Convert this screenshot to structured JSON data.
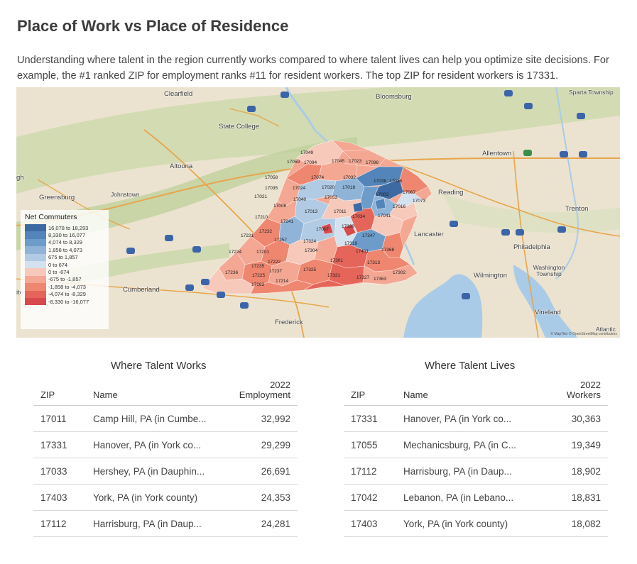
{
  "title": "Place of Work vs Place of Residence",
  "intro": "Understanding where talent in the region currently works compared to where talent lives can help you optimize site decisions. For example, the #1 ranked ZIP for employment ranks #11 for resident workers. The top ZIP for resident workers is 17331.",
  "map": {
    "cities": [
      "Clearfield",
      "Bloomsburg",
      "Sparta Township",
      "State College",
      "Altoona",
      "Allentown",
      "Reading",
      "Greensburg",
      "Johnstown",
      "Trenton",
      "Lancaster",
      "Philadelphia",
      "Washington Township",
      "Wilmington",
      "Cumberland",
      "Frederick",
      "Vineland",
      "Atlantic",
      "gh",
      "ito"
    ],
    "zip_labels": [
      "17049",
      "17059",
      "17094",
      "17045",
      "17023",
      "17098",
      "17058",
      "17074",
      "17032",
      "17038",
      "17026",
      "17035",
      "17024",
      "17020",
      "17018",
      "17021",
      "17040",
      "17053",
      "17003",
      "17067",
      "17006",
      "17013",
      "17011",
      "17016",
      "17073",
      "17210",
      "17241",
      "17034",
      "17041",
      "17232",
      "17007",
      "17339",
      "17221",
      "17257",
      "17324",
      "17347",
      "17319",
      "17224",
      "17201",
      "17304",
      "17401",
      "17368",
      "17235",
      "17222",
      "17301",
      "17313",
      "17236",
      "17237",
      "17325",
      "17225",
      "17331",
      "17327",
      "17302",
      "17263",
      "17214",
      "17363"
    ],
    "legend_title": "Net Commuters",
    "legend": [
      {
        "label": "16,078 to 18,293",
        "color": "#3e6aa3"
      },
      {
        "label": "8,330 to 16,077",
        "color": "#5385ba"
      },
      {
        "label": "4,074 to 8,329",
        "color": "#6e9cca"
      },
      {
        "label": "1,858 to 4,073",
        "color": "#8fb4d8"
      },
      {
        "label": "675 to 1,857",
        "color": "#b2cbe4"
      },
      {
        "label": "0 to 674",
        "color": "#d4e1ee"
      },
      {
        "label": "0 to -674",
        "color": "#f6c9bb"
      },
      {
        "label": "-675 to -1,857",
        "color": "#f4a793"
      },
      {
        "label": "-1,858 to -4,073",
        "color": "#ef8670"
      },
      {
        "label": "-4,074 to -8,329",
        "color": "#e5655a"
      },
      {
        "label": "-8,330 to -16,077",
        "color": "#d64a4c"
      }
    ],
    "attribution": "© MapTiler © OpenStreetMap contributors"
  },
  "works": {
    "title": "Where Talent Works",
    "col_zip": "ZIP",
    "col_name": "Name",
    "col_val_1": "2022",
    "col_val_2": "Employment",
    "rows": [
      {
        "zip": "17011",
        "name": "Camp Hill, PA (in Cumbe...",
        "value": "32,992"
      },
      {
        "zip": "17331",
        "name": "Hanover, PA (in York co...",
        "value": "29,299"
      },
      {
        "zip": "17033",
        "name": "Hershey, PA (in Dauphin...",
        "value": "26,691"
      },
      {
        "zip": "17403",
        "name": "York, PA (in York county)",
        "value": "24,353"
      },
      {
        "zip": "17112",
        "name": "Harrisburg, PA (in Daup...",
        "value": "24,281"
      }
    ]
  },
  "lives": {
    "title": "Where Talent Lives",
    "col_zip": "ZIP",
    "col_name": "Name",
    "col_val_1": "2022",
    "col_val_2": "Workers",
    "rows": [
      {
        "zip": "17331",
        "name": "Hanover, PA (in York co...",
        "value": "30,363"
      },
      {
        "zip": "17055",
        "name": "Mechanicsburg, PA (in C...",
        "value": "19,349"
      },
      {
        "zip": "17112",
        "name": "Harrisburg, PA (in Daup...",
        "value": "18,902"
      },
      {
        "zip": "17042",
        "name": "Lebanon, PA (in Lebano...",
        "value": "18,831"
      },
      {
        "zip": "17403",
        "name": "York, PA (in York county)",
        "value": "18,082"
      }
    ]
  }
}
